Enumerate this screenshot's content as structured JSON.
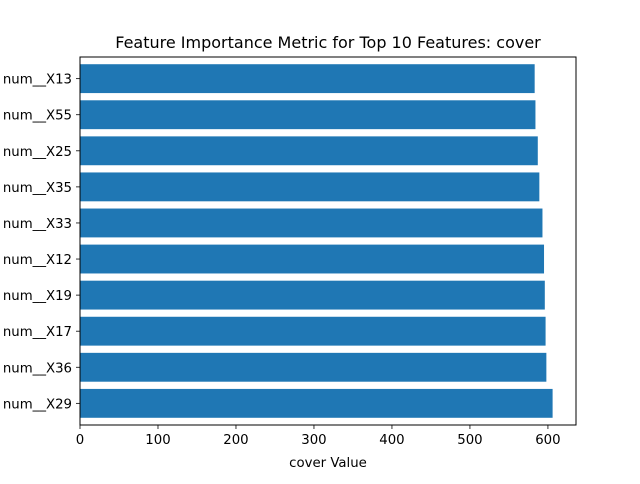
{
  "chart_data": {
    "type": "bar",
    "orientation": "horizontal",
    "title": "Feature Importance Metric for Top 10 Features: cover",
    "xlabel": "cover Value",
    "ylabel": "",
    "categories": [
      "num__X29",
      "num__X36",
      "num__X17",
      "num__X19",
      "num__X12",
      "num__X33",
      "num__X35",
      "num__X25",
      "num__X55",
      "num__X13"
    ],
    "values": [
      606,
      598,
      597,
      596,
      595,
      593,
      589,
      587,
      584,
      583
    ],
    "xlim": [
      0,
      636
    ],
    "xticks": [
      0,
      100,
      200,
      300,
      400,
      500,
      600
    ],
    "xtick_labels": [
      "0",
      "100",
      "200",
      "300",
      "400",
      "500",
      "600"
    ],
    "bar_color": "#1f77b4",
    "grid": false,
    "legend": "none"
  }
}
